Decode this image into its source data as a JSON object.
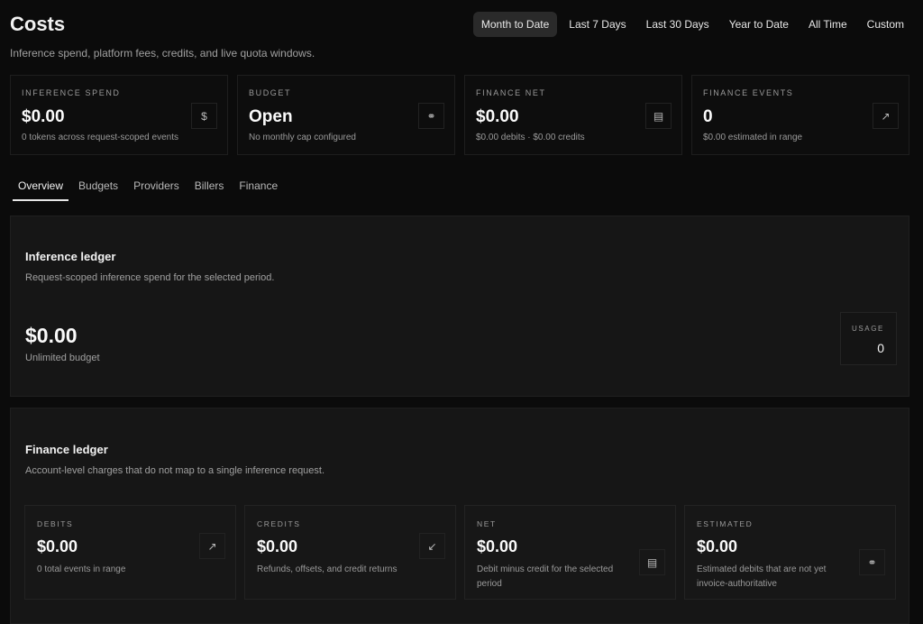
{
  "header": {
    "title": "Costs",
    "subtitle": "Inference spend, platform fees, credits, and live quota windows."
  },
  "ranges": [
    {
      "label": "Month to Date",
      "active": true
    },
    {
      "label": "Last 7 Days"
    },
    {
      "label": "Last 30 Days"
    },
    {
      "label": "Year to Date"
    },
    {
      "label": "All Time"
    },
    {
      "label": "Custom"
    }
  ],
  "stats": [
    {
      "label": "Inference Spend",
      "value": "$0.00",
      "sub": "0 tokens across request-scoped events",
      "icon": "dollar-icon",
      "glyph": "$"
    },
    {
      "label": "Budget",
      "value": "Open",
      "sub": "No monthly cap configured",
      "icon": "link-icon",
      "glyph": "⚭"
    },
    {
      "label": "Finance Net",
      "value": "$0.00",
      "sub": "$0.00 debits · $0.00 credits",
      "icon": "receipt-icon",
      "glyph": "▤"
    },
    {
      "label": "Finance Events",
      "value": "0",
      "sub": "$0.00 estimated in range",
      "icon": "arrow-up-right-icon",
      "glyph": "↗"
    }
  ],
  "tabs": [
    {
      "label": "Overview",
      "active": true
    },
    {
      "label": "Budgets"
    },
    {
      "label": "Providers"
    },
    {
      "label": "Billers"
    },
    {
      "label": "Finance"
    }
  ],
  "inference": {
    "title": "Inference ledger",
    "desc": "Request-scoped inference spend for the selected period.",
    "value": "$0.00",
    "sub": "Unlimited budget",
    "usage_label": "Usage",
    "usage_value": "0"
  },
  "finance": {
    "title": "Finance ledger",
    "desc": "Account-level charges that do not map to a single inference request.",
    "cards": [
      {
        "label": "Debits",
        "value": "$0.00",
        "sub": "0 total events in range",
        "icon": "arrow-up-right-icon",
        "glyph": "↗"
      },
      {
        "label": "Credits",
        "value": "$0.00",
        "sub": "Refunds, offsets, and credit returns",
        "icon": "arrow-down-left-icon",
        "glyph": "↙"
      },
      {
        "label": "Net",
        "value": "$0.00",
        "sub": "Debit minus credit for the selected period",
        "icon": "receipt-icon",
        "glyph": "▤"
      },
      {
        "label": "Estimated",
        "value": "$0.00",
        "sub": "Estimated debits that are not yet invoice-authoritative",
        "icon": "link-icon",
        "glyph": "⚭"
      }
    ]
  }
}
